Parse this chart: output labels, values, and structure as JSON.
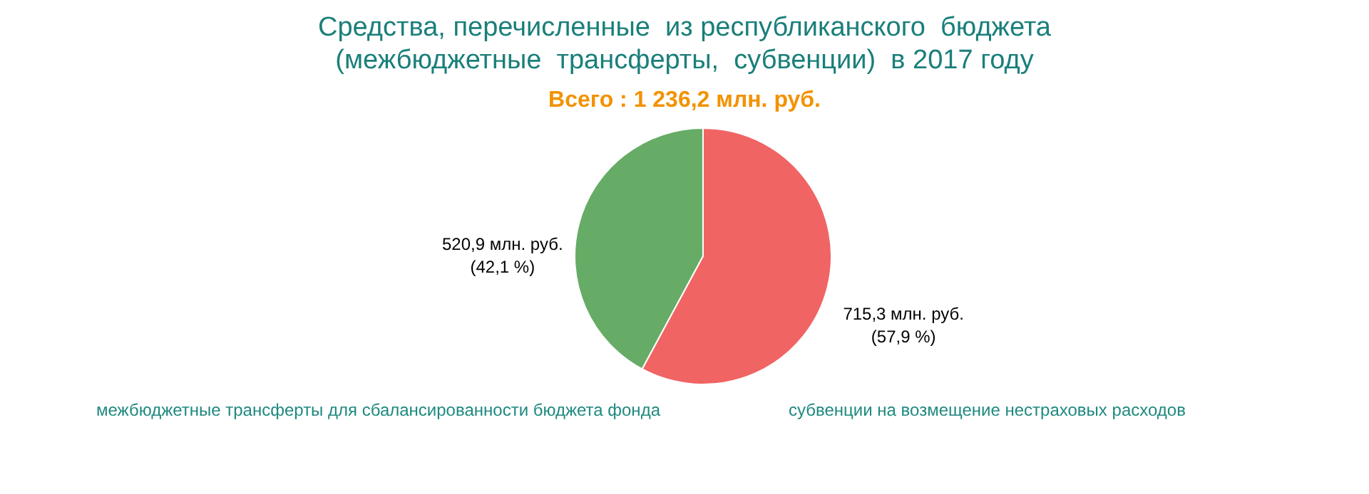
{
  "chart_data": {
    "type": "pie",
    "title": "Средства, перечисленные  из республиканского  бюджета\n(межбюджетные  трансферты,  субвенции)  в 2017 году",
    "subtitle": "Всего : 1 236,2 млн. руб.",
    "categories": [
      "межбюджетные  трансферты  для  сбалансированности  бюджета  фонда",
      "субвенции  на возмещение  нестраховых  расходов"
    ],
    "values": [
      520.9,
      715.3
    ],
    "colors": [
      "#66ac66",
      "#f06464"
    ],
    "value_labels": [
      "520,9 млн. руб.\n(42,1 %)",
      "715,3 млн. руб.\n(57,9 %)"
    ]
  }
}
